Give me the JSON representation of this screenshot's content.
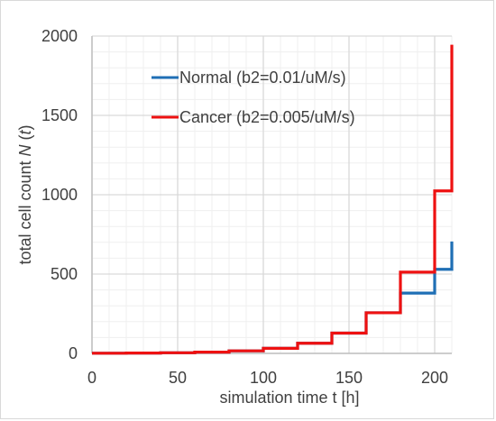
{
  "chart_data": {
    "type": "line",
    "subtype": "step",
    "title": "",
    "xlabel": "simulation time t [h]",
    "ylabel": {
      "prefix": "total cell count ",
      "var": "N",
      "open": " (",
      "var2": "t",
      "close": ")"
    },
    "xlim": [
      0,
      210
    ],
    "ylim": [
      0,
      2000
    ],
    "xticks": [
      0,
      50,
      100,
      150,
      200
    ],
    "yticks": [
      0,
      500,
      1000,
      1500,
      2000
    ],
    "minor_grid": {
      "x_step": 10,
      "y_step": 100
    },
    "grid": true,
    "legend_position": "top-center inside plot",
    "series": [
      {
        "name": "Normal (b2=0.01/uM/s)",
        "color": "#1f6fb5",
        "x": [
          0,
          20,
          40,
          60,
          80,
          100,
          120,
          140,
          160,
          180,
          200,
          210
        ],
        "values": [
          1,
          2,
          4,
          8,
          16,
          32,
          64,
          128,
          256,
          380,
          530,
          705
        ]
      },
      {
        "name": "Cancer (b2=0.005/uM/s)",
        "color": "#ee1111",
        "x": [
          0,
          20,
          40,
          60,
          80,
          100,
          120,
          140,
          160,
          180,
          200,
          210
        ],
        "values": [
          1,
          2,
          4,
          8,
          16,
          32,
          64,
          128,
          256,
          512,
          1024,
          1945
        ]
      }
    ]
  },
  "colors": {
    "major_grid": "#d9d9d9",
    "minor_grid": "#efefef",
    "axis": "#bfbfbf"
  }
}
